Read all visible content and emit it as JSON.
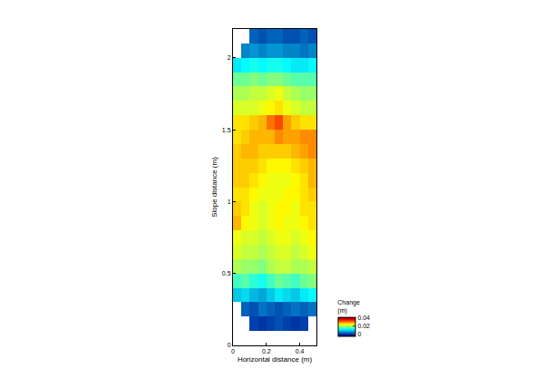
{
  "chart_data": {
    "type": "heatmap",
    "x_label": "Horizontal distance (m)",
    "y_label": "Slope distance (m)",
    "x": [
      0.025,
      0.075,
      0.125,
      0.175,
      0.225,
      0.275,
      0.325,
      0.375,
      0.425,
      0.475
    ],
    "y": [
      0.05,
      0.15,
      0.25,
      0.35,
      0.45,
      0.55,
      0.65,
      0.75,
      0.85,
      0.95,
      1.05,
      1.15,
      1.25,
      1.35,
      1.45,
      1.55,
      1.65,
      1.75,
      1.85,
      1.95,
      2.05,
      2.15
    ],
    "z": [
      [
        null,
        null,
        null,
        null,
        null,
        null,
        null,
        null,
        null,
        null
      ],
      [
        null,
        null,
        0.0,
        -0.001,
        0.0,
        0.001,
        0.0,
        -0.001,
        0.0,
        null
      ],
      [
        null,
        0.002,
        0.001,
        0.003,
        0.002,
        0.001,
        0.002,
        0.003,
        0.002,
        0.003
      ],
      [
        0.008,
        0.009,
        0.007,
        0.006,
        0.008,
        0.01,
        0.009,
        0.008,
        0.01,
        0.011
      ],
      [
        0.014,
        0.015,
        0.013,
        0.012,
        0.014,
        0.016,
        0.015,
        0.014,
        0.016,
        0.017
      ],
      [
        0.019,
        0.018,
        0.018,
        0.017,
        0.019,
        0.02,
        0.02,
        0.019,
        0.019,
        0.02
      ],
      [
        0.021,
        0.02,
        0.02,
        0.019,
        0.02,
        0.021,
        0.021,
        0.02,
        0.021,
        0.022
      ],
      [
        0.022,
        0.021,
        0.021,
        0.02,
        0.021,
        0.022,
        0.022,
        0.021,
        0.022,
        0.023
      ],
      [
        0.026,
        0.023,
        0.022,
        0.021,
        0.022,
        0.023,
        0.022,
        0.022,
        0.023,
        0.024
      ],
      [
        0.025,
        0.024,
        0.022,
        0.021,
        0.022,
        0.023,
        0.023,
        0.022,
        0.024,
        0.024
      ],
      [
        0.024,
        0.024,
        0.023,
        0.022,
        0.022,
        0.022,
        0.023,
        0.023,
        0.024,
        0.025
      ],
      [
        0.025,
        0.025,
        0.024,
        0.023,
        0.022,
        0.022,
        0.022,
        0.023,
        0.024,
        0.026
      ],
      [
        0.025,
        0.025,
        0.025,
        0.024,
        0.023,
        0.023,
        0.023,
        0.024,
        0.025,
        0.026
      ],
      [
        0.025,
        0.026,
        0.026,
        0.025,
        0.025,
        0.025,
        0.025,
        0.026,
        0.027,
        0.028
      ],
      [
        0.024,
        0.025,
        0.026,
        0.026,
        0.026,
        0.028,
        0.027,
        0.027,
        0.028,
        0.028
      ],
      [
        0.024,
        0.024,
        0.025,
        0.026,
        0.029,
        0.031,
        0.027,
        0.025,
        0.024,
        0.024
      ],
      [
        0.021,
        0.021,
        0.021,
        0.022,
        0.023,
        0.024,
        0.022,
        0.021,
        0.02,
        0.02
      ],
      [
        0.019,
        0.019,
        0.02,
        0.02,
        0.021,
        0.022,
        0.02,
        0.019,
        0.018,
        0.018
      ],
      [
        0.016,
        0.016,
        0.017,
        0.016,
        0.017,
        0.017,
        0.016,
        0.015,
        0.015,
        0.015
      ],
      [
        0.01,
        0.011,
        0.012,
        0.011,
        0.012,
        0.012,
        0.011,
        0.01,
        0.01,
        0.011
      ],
      [
        null,
        0.004,
        0.005,
        0.004,
        0.005,
        0.005,
        0.004,
        0.004,
        0.003,
        0.004
      ],
      [
        null,
        null,
        0.002,
        0.001,
        0.002,
        0.002,
        0.001,
        0.001,
        0.002,
        0.001
      ]
    ],
    "color": "Jet",
    "xlim": [
      0,
      0.5
    ],
    "xticks": [
      0,
      0.2,
      0.4
    ],
    "ylim": [
      0,
      2.2
    ],
    "yticks": [
      0,
      0.5,
      1,
      1.5,
      2
    ],
    "grid": false,
    "colorbar": {
      "title": "Change\n(m)",
      "range": [
        -0.006,
        0.04
      ],
      "ticks": [
        0,
        0.02,
        0.04
      ]
    }
  }
}
